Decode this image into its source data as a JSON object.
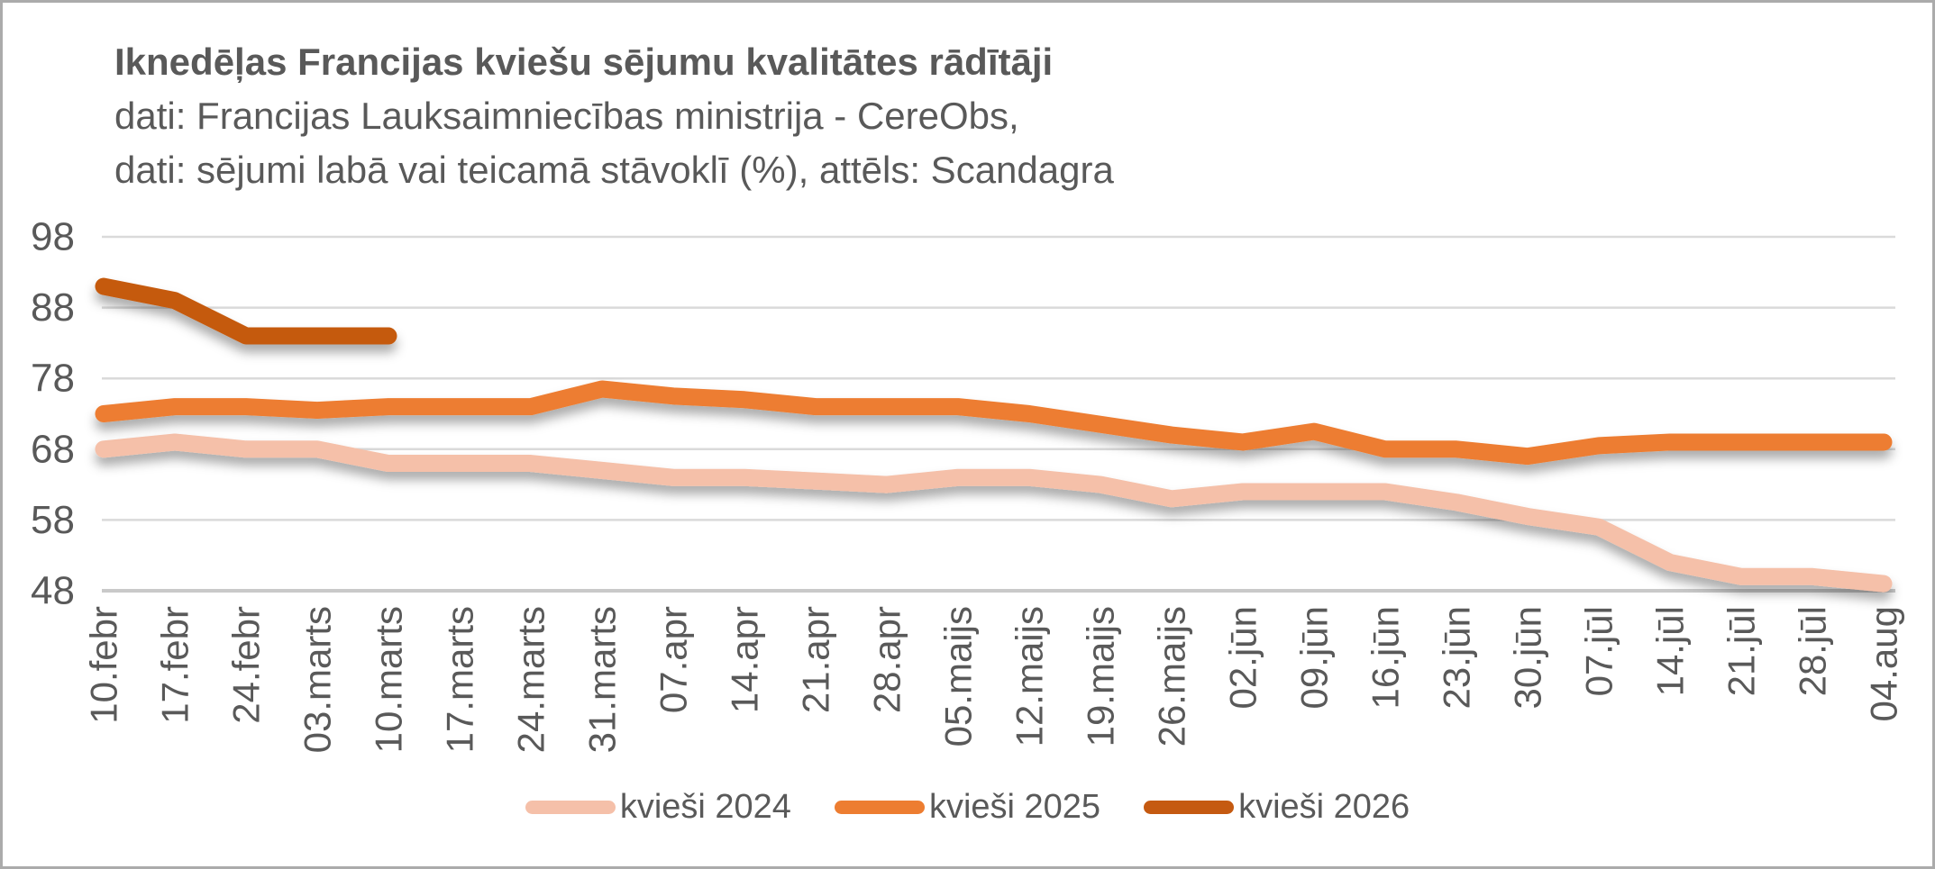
{
  "header": {
    "title": "Iknedēļas Francijas kviešu sējumu kvalitātes rādītāji",
    "subtitle1": "dati: Francijas Lauksaimniecības ministrija - CereObs,",
    "subtitle2": "dati: sējumi labā vai teicamā stāvoklī (%), attēls: Scandagra"
  },
  "chart_data": {
    "type": "line",
    "title": "Iknedēļas Francijas kviešu sējumu kvalitātes rādītāji",
    "xlabel": "",
    "ylabel": "sējumi labā vai teicamā stāvoklī (%)",
    "ylim": [
      48,
      98
    ],
    "yticks": [
      98,
      88,
      78,
      68,
      58,
      48
    ],
    "grid": true,
    "legend_position": "bottom",
    "categories": [
      "10.febr",
      "17.febr",
      "24.febr",
      "03.marts",
      "10.marts",
      "17.marts",
      "24.marts",
      "31.marts",
      "07.apr",
      "14.apr",
      "21.apr",
      "28.apr",
      "05.maijs",
      "12.maijs",
      "19.maijs",
      "26.maijs",
      "02.jūn",
      "09.jūn",
      "16.jūn",
      "23.jūn",
      "30.jūn",
      "07.jūl",
      "14.jūl",
      "21.jūl",
      "28.jūl",
      "04.aug"
    ],
    "series": [
      {
        "name": "kvieši 2024",
        "color": "#F5C0A9",
        "values": [
          68,
          69,
          68,
          68,
          66,
          66,
          66,
          65,
          64,
          64,
          63.5,
          63,
          64,
          64,
          63,
          61,
          62,
          62,
          62,
          60.5,
          58.5,
          57,
          52,
          50,
          50,
          49
        ]
      },
      {
        "name": "kvieši 2025",
        "color": "#ED7D31",
        "values": [
          73,
          74,
          74,
          73.5,
          74,
          74,
          74,
          76.5,
          75.5,
          75,
          74,
          74,
          74,
          73,
          71.5,
          70,
          69,
          70.5,
          68,
          68,
          67,
          68.5,
          69,
          69,
          69,
          69
        ]
      },
      {
        "name": "kvieši 2026",
        "color": "#C55A11",
        "values": [
          91,
          89,
          84,
          84,
          84,
          null,
          null,
          null,
          null,
          null,
          null,
          null,
          null,
          null,
          null,
          null,
          null,
          null,
          null,
          null,
          null,
          null,
          null,
          null,
          null,
          null
        ]
      }
    ]
  },
  "colors": {
    "text": "#595959",
    "grid": "#DADADA",
    "axis": "#C9C9C9",
    "border": "#ABABAB",
    "background": "#FFFFFF"
  }
}
